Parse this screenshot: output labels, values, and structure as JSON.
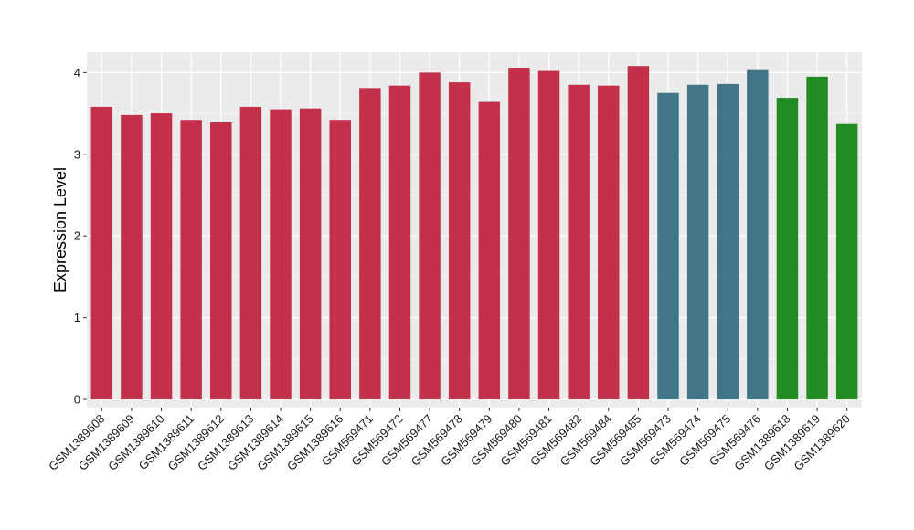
{
  "chart_data": {
    "type": "bar",
    "title": "",
    "xlabel": "",
    "ylabel": "Expression Level",
    "ylim": [
      -0.1,
      4.25
    ],
    "yticks": [
      0,
      1,
      2,
      3,
      4
    ],
    "grid": true,
    "panel_background": "#ebebeb",
    "categories": [
      "GSM1389608",
      "GSM1389609",
      "GSM1389610",
      "GSM1389611",
      "GSM1389612",
      "GSM1389613",
      "GSM1389614",
      "GSM1389615",
      "GSM1389616",
      "GSM569471",
      "GSM569472",
      "GSM569477",
      "GSM569478",
      "GSM569479",
      "GSM569480",
      "GSM569481",
      "GSM569482",
      "GSM569484",
      "GSM569485",
      "GSM569473",
      "GSM569474",
      "GSM569475",
      "GSM569476",
      "GSM1389618",
      "GSM1389619",
      "GSM1389620"
    ],
    "values": [
      3.58,
      3.48,
      3.5,
      3.42,
      3.39,
      3.58,
      3.55,
      3.56,
      3.42,
      3.81,
      3.84,
      4.0,
      3.88,
      3.64,
      4.06,
      4.02,
      3.85,
      3.84,
      4.08,
      3.75,
      3.85,
      3.86,
      4.03,
      3.69,
      3.95,
      3.37
    ],
    "colors": [
      "#c3304a",
      "#c3304a",
      "#c3304a",
      "#c3304a",
      "#c3304a",
      "#c3304a",
      "#c3304a",
      "#c3304a",
      "#c3304a",
      "#c3304a",
      "#c3304a",
      "#c3304a",
      "#c3304a",
      "#c3304a",
      "#c3304a",
      "#c3304a",
      "#c3304a",
      "#c3304a",
      "#c3304a",
      "#417689",
      "#417689",
      "#417689",
      "#417689",
      "#238b23",
      "#238b23",
      "#238b23"
    ]
  }
}
